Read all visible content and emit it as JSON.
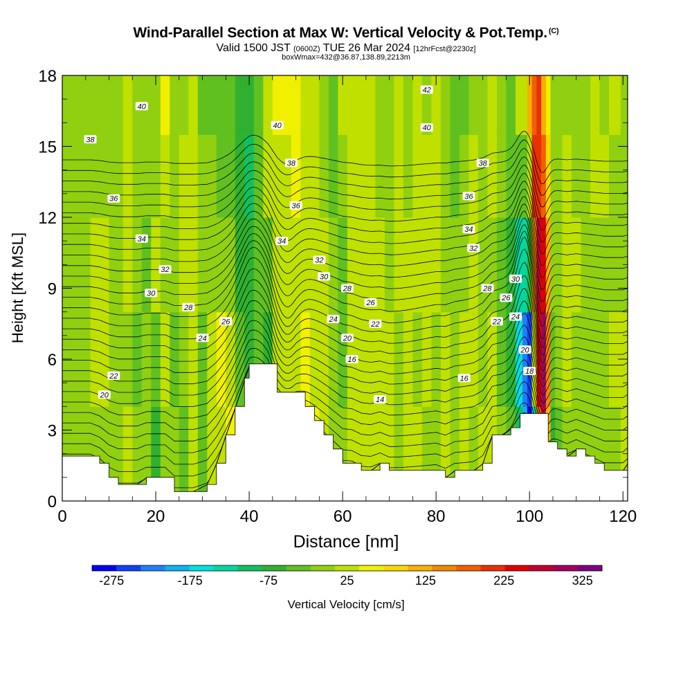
{
  "title": "Wind-Parallel Section at Max W: Vertical Velocity & Pot.Temp.",
  "title_mark": "(C)",
  "subtitle": {
    "valid": "Valid 1500 JST",
    "utc": "(0600Z)",
    "date": "TUE 26 Mar 2024",
    "fcst": "[12hrFcst@2230z]",
    "box": "boxWmax=432@36.87,138.89,2213m"
  },
  "colorbar_title": "Vertical Velocity [cm/s]",
  "colors": {
    "terrain": "#ffffff",
    "contour": "#000000",
    "colorbar": [
      "#0000f0",
      "#1040f5",
      "#2080f5",
      "#10b0f0",
      "#00e0e0",
      "#00d8a0",
      "#10c060",
      "#30b030",
      "#60c020",
      "#90d010",
      "#c0e000",
      "#f0f000",
      "#f8d800",
      "#f8b000",
      "#f08800",
      "#f06000",
      "#e83000",
      "#e00000",
      "#c00030",
      "#a00060",
      "#800080"
    ]
  },
  "chart_data": {
    "type": "heatmap",
    "xlabel": "Distance [nm]",
    "ylabel": "Height [Kft MSL]",
    "xlim": [
      0,
      121
    ],
    "ylim": [
      0,
      18
    ],
    "xticks": [
      "0",
      "20",
      "40",
      "60",
      "80",
      "100",
      "120"
    ],
    "xtick_values": [
      0,
      20,
      40,
      60,
      80,
      100,
      120
    ],
    "yticks": [
      "0",
      "3",
      "6",
      "9",
      "12",
      "15",
      "18"
    ],
    "ytick_values": [
      0,
      3,
      6,
      9,
      12,
      15,
      18
    ],
    "colorbar": {
      "ticks": [
        "-275",
        "-175",
        "-75",
        "25",
        "125",
        "225",
        "325"
      ],
      "tick_values": [
        -275,
        -175,
        -75,
        25,
        125,
        225,
        325
      ],
      "min": -300,
      "max": 350
    },
    "terrain": [
      [
        0,
        1.9
      ],
      [
        2,
        1.9
      ],
      [
        6,
        1.9
      ],
      [
        8,
        1.6
      ],
      [
        10,
        1.0
      ],
      [
        12,
        0.7
      ],
      [
        16,
        0.7
      ],
      [
        18,
        1.0
      ],
      [
        22,
        1.0
      ],
      [
        24,
        0.4
      ],
      [
        28,
        0.4
      ],
      [
        31,
        0.7
      ],
      [
        33,
        1.6
      ],
      [
        35,
        2.8
      ],
      [
        37,
        4.0
      ],
      [
        39,
        5.2
      ],
      [
        40,
        5.8
      ],
      [
        44,
        5.8
      ],
      [
        46,
        4.6
      ],
      [
        48,
        4.6
      ],
      [
        50,
        4.6
      ],
      [
        52,
        4.0
      ],
      [
        54,
        3.4
      ],
      [
        56,
        2.8
      ],
      [
        58,
        2.2
      ],
      [
        60,
        1.6
      ],
      [
        62,
        1.6
      ],
      [
        64,
        1.3
      ],
      [
        66,
        1.3
      ],
      [
        68,
        1.6
      ],
      [
        70,
        1.3
      ],
      [
        74,
        1.3
      ],
      [
        80,
        1.3
      ],
      [
        82,
        1.0
      ],
      [
        84,
        1.3
      ],
      [
        88,
        1.3
      ],
      [
        90,
        1.6
      ],
      [
        92,
        2.8
      ],
      [
        94,
        2.8
      ],
      [
        96,
        3.1
      ],
      [
        98,
        3.7
      ],
      [
        100,
        3.7
      ],
      [
        102,
        3.7
      ],
      [
        104,
        2.5
      ],
      [
        106,
        2.2
      ],
      [
        108,
        1.9
      ],
      [
        110,
        2.2
      ],
      [
        112,
        1.9
      ],
      [
        114,
        1.6
      ],
      [
        116,
        1.3
      ],
      [
        118,
        1.3
      ],
      [
        120,
        1.3
      ],
      [
        121,
        1.6
      ]
    ],
    "w_columns": [
      {
        "x": 0,
        "w": [
          0,
          0,
          5,
          5,
          5
        ]
      },
      {
        "x": 4,
        "w": [
          -15,
          -10,
          0,
          0,
          0
        ]
      },
      {
        "x": 8,
        "w": [
          5,
          15,
          10,
          5,
          5
        ]
      },
      {
        "x": 12,
        "w": [
          -20,
          -10,
          -5,
          0,
          0
        ]
      },
      {
        "x": 14,
        "w": [
          10,
          5,
          20,
          35,
          30
        ]
      },
      {
        "x": 16,
        "w": [
          -5,
          -25,
          -10,
          -5,
          -5
        ]
      },
      {
        "x": 18,
        "w": [
          0,
          -5,
          -30,
          -10,
          0
        ]
      },
      {
        "x": 20,
        "w": [
          -80,
          -40,
          10,
          5,
          0
        ]
      },
      {
        "x": 22,
        "w": [
          5,
          15,
          5,
          40,
          50
        ]
      },
      {
        "x": 24,
        "w": [
          -20,
          -30,
          -10,
          -10,
          -5
        ]
      },
      {
        "x": 26,
        "w": [
          -40,
          -20,
          20,
          10,
          5
        ]
      },
      {
        "x": 28,
        "w": [
          20,
          25,
          15,
          25,
          10
        ]
      },
      {
        "x": 30,
        "w": [
          -30,
          -25,
          -10,
          -20,
          -35
        ]
      },
      {
        "x": 32,
        "w": [
          10,
          20,
          5,
          -5,
          -30
        ]
      },
      {
        "x": 34,
        "w": [
          40,
          45,
          -5,
          -30,
          -50
        ]
      },
      {
        "x": 36,
        "w": [
          60,
          40,
          0,
          -25,
          -40
        ]
      },
      {
        "x": 38,
        "w": [
          -20,
          -50,
          -60,
          -75,
          -60
        ]
      },
      {
        "x": 40,
        "w": [
          -70,
          -80,
          -80,
          -90,
          -70
        ]
      },
      {
        "x": 42,
        "w": [
          -40,
          -40,
          -40,
          -50,
          -30
        ]
      },
      {
        "x": 44,
        "w": [
          -60,
          -80,
          -40,
          20,
          35
        ]
      },
      {
        "x": 46,
        "w": [
          10,
          40,
          20,
          30,
          50
        ]
      },
      {
        "x": 48,
        "w": [
          40,
          10,
          25,
          40,
          45
        ]
      },
      {
        "x": 50,
        "w": [
          30,
          20,
          30,
          45,
          45
        ]
      },
      {
        "x": 52,
        "w": [
          50,
          45,
          10,
          25,
          30
        ]
      },
      {
        "x": 54,
        "w": [
          60,
          40,
          25,
          15,
          10
        ]
      },
      {
        "x": 56,
        "w": [
          20,
          20,
          10,
          -20,
          -10
        ]
      },
      {
        "x": 58,
        "w": [
          -20,
          -10,
          -20,
          -40,
          -35
        ]
      },
      {
        "x": 60,
        "w": [
          -10,
          -30,
          -40,
          -10,
          20
        ]
      },
      {
        "x": 62,
        "w": [
          10,
          15,
          10,
          25,
          30
        ]
      },
      {
        "x": 64,
        "w": [
          15,
          20,
          35,
          40,
          30
        ]
      },
      {
        "x": 66,
        "w": [
          25,
          30,
          25,
          15,
          10
        ]
      },
      {
        "x": 68,
        "w": [
          40,
          40,
          20,
          -5,
          -10
        ]
      },
      {
        "x": 70,
        "w": [
          10,
          20,
          0,
          -10,
          -5
        ]
      },
      {
        "x": 72,
        "w": [
          -10,
          -15,
          10,
          20,
          10
        ]
      },
      {
        "x": 74,
        "w": [
          20,
          25,
          15,
          0,
          5
        ]
      },
      {
        "x": 76,
        "w": [
          10,
          -5,
          10,
          30,
          25
        ]
      },
      {
        "x": 78,
        "w": [
          5,
          25,
          15,
          15,
          5
        ]
      },
      {
        "x": 80,
        "w": [
          -5,
          5,
          25,
          20,
          10
        ]
      },
      {
        "x": 82,
        "w": [
          20,
          10,
          5,
          -10,
          -15
        ]
      },
      {
        "x": 84,
        "w": [
          0,
          -20,
          -20,
          -35,
          -30
        ]
      },
      {
        "x": 86,
        "w": [
          20,
          15,
          -5,
          -20,
          -25
        ]
      },
      {
        "x": 88,
        "w": [
          5,
          20,
          25,
          10,
          0
        ]
      },
      {
        "x": 90,
        "w": [
          15,
          5,
          -5,
          -5,
          -10
        ]
      },
      {
        "x": 92,
        "w": [
          30,
          10,
          0,
          10,
          15
        ]
      },
      {
        "x": 94,
        "w": [
          -10,
          -30,
          -25,
          -10,
          -20
        ]
      },
      {
        "x": 96,
        "w": [
          -40,
          -60,
          -80,
          -50,
          -30
        ]
      },
      {
        "x": 98,
        "w": [
          -100,
          -150,
          -120,
          -40,
          10
        ]
      },
      {
        "x": 99,
        "w": [
          -200,
          -220,
          -140,
          -30,
          30
        ]
      },
      {
        "x": 100,
        "w": [
          -280,
          -250,
          -60,
          40,
          120
        ]
      },
      {
        "x": 101,
        "w": [
          -120,
          20,
          150,
          200,
          180
        ]
      },
      {
        "x": 102,
        "w": [
          180,
          250,
          260,
          220,
          200
        ]
      },
      {
        "x": 103,
        "w": [
          280,
          300,
          250,
          180,
          120
        ]
      },
      {
        "x": 104,
        "w": [
          120,
          150,
          120,
          80,
          60
        ]
      },
      {
        "x": 105,
        "w": [
          -60,
          -40,
          -20,
          -10,
          0
        ]
      },
      {
        "x": 106,
        "w": [
          -30,
          -20,
          -10,
          -5,
          -10
        ]
      },
      {
        "x": 108,
        "w": [
          0,
          10,
          20,
          15,
          5
        ]
      },
      {
        "x": 110,
        "w": [
          -5,
          0,
          10,
          5,
          0
        ]
      },
      {
        "x": 112,
        "w": [
          0,
          -5,
          0,
          -10,
          -5
        ]
      },
      {
        "x": 114,
        "w": [
          -10,
          5,
          5,
          10,
          10
        ]
      },
      {
        "x": 116,
        "w": [
          0,
          0,
          5,
          10,
          5
        ]
      },
      {
        "x": 118,
        "w": [
          5,
          10,
          0,
          5,
          10
        ]
      },
      {
        "x": 121,
        "w": [
          10,
          10,
          5,
          5,
          5
        ]
      }
    ],
    "w_levels": [
      2,
      6,
      10,
      14,
      17
    ],
    "isentropes": [
      {
        "theta": 14,
        "label_x": 68,
        "label_y": 4.3
      },
      {
        "theta": 16,
        "label_x": 86,
        "label_y": 5.2
      },
      {
        "theta": 16,
        "label_x": 62,
        "label_y": 6.0
      },
      {
        "theta": 18,
        "label_x": 100,
        "label_y": 5.5
      },
      {
        "theta": 20,
        "label_x": 9,
        "label_y": 4.5
      },
      {
        "theta": 20,
        "label_x": 61,
        "label_y": 6.9
      },
      {
        "theta": 20,
        "label_x": 99,
        "label_y": 6.4
      },
      {
        "theta": 22,
        "label_x": 11,
        "label_y": 5.3
      },
      {
        "theta": 22,
        "label_x": 67,
        "label_y": 7.5
      },
      {
        "theta": 22,
        "label_x": 93,
        "label_y": 7.6
      },
      {
        "theta": 24,
        "label_x": 30,
        "label_y": 6.9
      },
      {
        "theta": 24,
        "label_x": 58,
        "label_y": 7.7
      },
      {
        "theta": 24,
        "label_x": 97,
        "label_y": 7.8
      },
      {
        "theta": 26,
        "label_x": 35,
        "label_y": 7.6
      },
      {
        "theta": 26,
        "label_x": 66,
        "label_y": 8.4
      },
      {
        "theta": 26,
        "label_x": 95,
        "label_y": 8.6
      },
      {
        "theta": 28,
        "label_x": 27,
        "label_y": 8.2
      },
      {
        "theta": 28,
        "label_x": 61,
        "label_y": 9.0
      },
      {
        "theta": 28,
        "label_x": 91,
        "label_y": 9.0
      },
      {
        "theta": 30,
        "label_x": 19,
        "label_y": 8.8
      },
      {
        "theta": 30,
        "label_x": 56,
        "label_y": 9.5
      },
      {
        "theta": 30,
        "label_x": 97,
        "label_y": 9.4
      },
      {
        "theta": 32,
        "label_x": 22,
        "label_y": 9.8
      },
      {
        "theta": 32,
        "label_x": 55,
        "label_y": 10.2
      },
      {
        "theta": 32,
        "label_x": 88,
        "label_y": 10.7
      },
      {
        "theta": 34,
        "label_x": 17,
        "label_y": 11.1
      },
      {
        "theta": 34,
        "label_x": 47,
        "label_y": 11.0
      },
      {
        "theta": 34,
        "label_x": 87,
        "label_y": 11.5
      },
      {
        "theta": 36,
        "label_x": 11,
        "label_y": 12.8
      },
      {
        "theta": 36,
        "label_x": 50,
        "label_y": 12.5
      },
      {
        "theta": 36,
        "label_x": 87,
        "label_y": 12.9
      },
      {
        "theta": 38,
        "label_x": 6,
        "label_y": 15.3
      },
      {
        "theta": 38,
        "label_x": 49,
        "label_y": 14.3
      },
      {
        "theta": 38,
        "label_x": 90,
        "label_y": 14.3
      },
      {
        "theta": 40,
        "label_x": 17,
        "label_y": 16.7
      },
      {
        "theta": 40,
        "label_x": 46,
        "label_y": 15.9
      },
      {
        "theta": 40,
        "label_x": 78,
        "label_y": 15.8
      },
      {
        "theta": 42,
        "label_x": 78,
        "label_y": 17.4
      }
    ]
  }
}
